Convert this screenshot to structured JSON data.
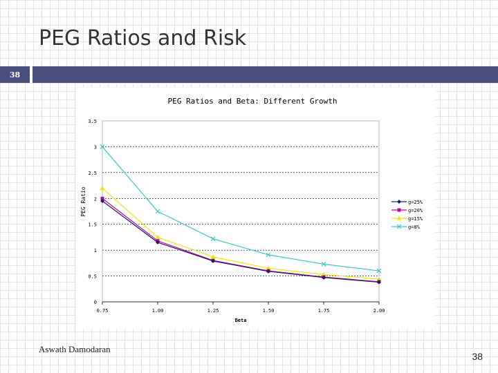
{
  "slide": {
    "title": "PEG Ratios and Risk",
    "number": "38",
    "author": "Aswath Damodaran",
    "page": "38"
  },
  "colors": {
    "header_bar": "#4a4e7e"
  },
  "chart_data": {
    "type": "line",
    "title": "PEG Ratios and Beta: Different Growth",
    "xlabel": "Beta",
    "ylabel": "PEG Ratio",
    "x": [
      0.75,
      1.0,
      1.25,
      1.5,
      1.75,
      2.0
    ],
    "x_tick_labels": [
      "0.75",
      "1.00",
      "1.25",
      "1.50",
      "1.75",
      "2.00"
    ],
    "ylim": [
      0,
      3.5
    ],
    "y_ticks": [
      0,
      0.5,
      1,
      1.5,
      2,
      2.5,
      3,
      3.5
    ],
    "y_tick_labels": [
      "0",
      "0.5",
      "1",
      "1.5",
      "2",
      "2.5",
      "3",
      "3.5"
    ],
    "grid": "horizontal dashed",
    "legend_position": "right",
    "series": [
      {
        "name": "g=25%",
        "color": "#1a1a6e",
        "marker": "diamond",
        "values": [
          1.95,
          1.15,
          0.79,
          0.59,
          0.47,
          0.38
        ]
      },
      {
        "name": "g=20%",
        "color": "#cc0099",
        "marker": "square",
        "values": [
          2.0,
          1.18,
          0.8,
          0.6,
          0.48,
          0.39
        ]
      },
      {
        "name": "g=15%",
        "color": "#f2e600",
        "marker": "triangle",
        "values": [
          2.2,
          1.25,
          0.87,
          0.65,
          0.53,
          0.44
        ]
      },
      {
        "name": "g=8%",
        "color": "#33cccc",
        "marker": "x",
        "values": [
          3.0,
          1.75,
          1.22,
          0.91,
          0.73,
          0.6
        ]
      }
    ]
  }
}
